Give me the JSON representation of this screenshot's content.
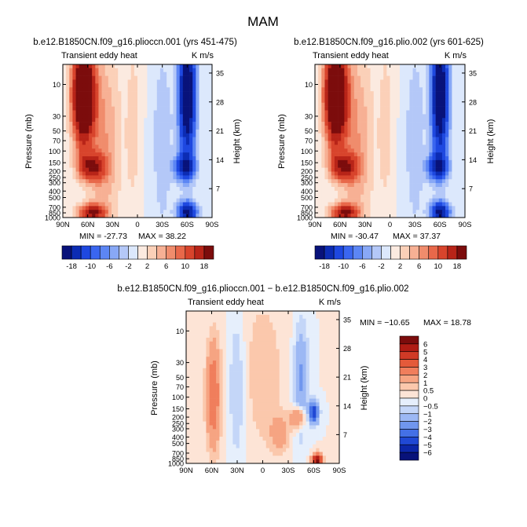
{
  "figure": {
    "season": "MAM",
    "colors": {
      "deep_blue": "#0a1a8c",
      "blue": "#2050e8",
      "light_blue": "#d7e6fb",
      "peach": "#fde1cf",
      "red": "#e0452a",
      "dark_red": "#7a0b0b"
    }
  },
  "chart_data": [
    {
      "type": "heatmap",
      "title": "b.e12.B1850CN.f09_g16.plioccn.001 (yrs 451-475)",
      "variable": "Transient eddy heat",
      "units": "K m/s",
      "ylabel": "Pressure (mb)",
      "ylabel_right": "Height (km)",
      "x": [
        "90N",
        "60N",
        "30N",
        "0",
        "30S",
        "60S",
        "90S"
      ],
      "x_values": [
        90,
        60,
        30,
        0,
        -30,
        -60,
        -90
      ],
      "pressure_ticks": [
        "10",
        "30",
        "50",
        "70",
        "100",
        "150",
        "200",
        "250",
        "300",
        "400",
        "500",
        "700",
        "850",
        "1000"
      ],
      "height_ticks": [
        "35",
        "28",
        "21",
        "14",
        "7"
      ],
      "ylim": [
        1000,
        5
      ],
      "min_label": "MIN = -27.73",
      "max_label": "MAX =  38.22",
      "min": -27.73,
      "max": 38.22,
      "colorbar": {
        "labels": [
          "-18",
          "-10",
          "-6",
          "-2",
          "2",
          "6",
          "10",
          "18"
        ],
        "levels": [
          -18,
          -14,
          -10,
          -8,
          -6,
          -4,
          -2,
          0,
          2,
          4,
          6,
          8,
          10,
          14,
          18
        ],
        "colors": [
          "#08127a",
          "#0c2cb4",
          "#1e48e0",
          "#3a66f0",
          "#5c86f4",
          "#88a8f6",
          "#b4c8f8",
          "#dce8fc",
          "#fbeae0",
          "#fbd0b8",
          "#f7b094",
          "#f08c6c",
          "#e8684a",
          "#d8442c",
          "#b82418",
          "#7c0c0c"
        ]
      }
    },
    {
      "type": "heatmap",
      "title": "b.e12.B1850CN.f09_g16.plio.002 (yrs 601-625)",
      "variable": "Transient eddy heat",
      "units": "K m/s",
      "ylabel": "Pressure (mb)",
      "ylabel_right": "Height (km)",
      "x": [
        "90N",
        "60N",
        "30N",
        "0",
        "30S",
        "60S",
        "90S"
      ],
      "x_values": [
        90,
        60,
        30,
        0,
        -30,
        -60,
        -90
      ],
      "pressure_ticks": [
        "10",
        "30",
        "50",
        "70",
        "100",
        "150",
        "200",
        "250",
        "300",
        "400",
        "500",
        "700",
        "850",
        "1000"
      ],
      "height_ticks": [
        "35",
        "28",
        "21",
        "14",
        "7"
      ],
      "ylim": [
        1000,
        5
      ],
      "min_label": "MIN = -30.47",
      "max_label": "MAX =  37.37",
      "min": -30.47,
      "max": 37.37,
      "colorbar": {
        "labels": [
          "-18",
          "-10",
          "-6",
          "-2",
          "2",
          "6",
          "10",
          "18"
        ],
        "levels": [
          -18,
          -14,
          -10,
          -8,
          -6,
          -4,
          -2,
          0,
          2,
          4,
          6,
          8,
          10,
          14,
          18
        ],
        "colors": [
          "#08127a",
          "#0c2cb4",
          "#1e48e0",
          "#3a66f0",
          "#5c86f4",
          "#88a8f6",
          "#b4c8f8",
          "#dce8fc",
          "#fbeae0",
          "#fbd0b8",
          "#f7b094",
          "#f08c6c",
          "#e8684a",
          "#d8442c",
          "#b82418",
          "#7c0c0c"
        ]
      }
    },
    {
      "type": "heatmap",
      "title": "b.e12.B1850CN.f09_g16.plioccn.001 − b.e12.B1850CN.f09_g16.plio.002",
      "variable": "Transient eddy heat",
      "units": "K m/s",
      "ylabel": "Pressure (mb)",
      "ylabel_right": "Height (km)",
      "x": [
        "90N",
        "60N",
        "30N",
        "0",
        "30S",
        "60S",
        "90S"
      ],
      "x_values": [
        90,
        60,
        30,
        0,
        -30,
        -60,
        -90
      ],
      "pressure_ticks": [
        "10",
        "30",
        "50",
        "70",
        "100",
        "150",
        "200",
        "250",
        "300",
        "400",
        "500",
        "700",
        "850",
        "1000"
      ],
      "height_ticks": [
        "35",
        "28",
        "21",
        "14",
        "7"
      ],
      "ylim": [
        1000,
        5
      ],
      "min_label": "MIN = −10.65",
      "max_label": "MAX =  18.78",
      "min": -10.65,
      "max": 18.78,
      "colorbar": {
        "labels": [
          "6",
          "5",
          "4",
          "3",
          "2",
          "1",
          "0.5",
          "0",
          "−0.5",
          "−1",
          "−2",
          "−3",
          "−4",
          "−5",
          "−6"
        ],
        "levels": [
          6,
          5,
          4,
          3,
          2,
          1,
          0.5,
          0,
          -0.5,
          -1,
          -2,
          -3,
          -4,
          -5,
          -6
        ],
        "colors": [
          "#7c0c0c",
          "#b01c14",
          "#d03a26",
          "#e45a3a",
          "#f07e5c",
          "#f6a482",
          "#fbc8ac",
          "#fde4d6",
          "#e6effc",
          "#c4d6f8",
          "#9cb8f4",
          "#7096ee",
          "#4470e6",
          "#2048d4",
          "#0c26a8",
          "#08127a"
        ]
      }
    }
  ]
}
